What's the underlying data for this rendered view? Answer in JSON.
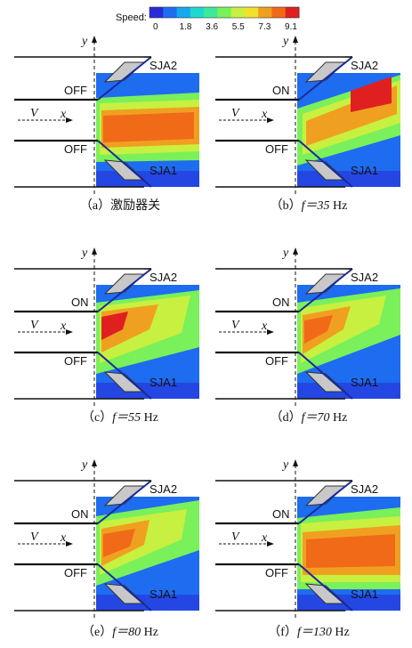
{
  "legend": {
    "title": "Speed:",
    "ticks": [
      "0",
      "1.8",
      "3.6",
      "5.5",
      "7.3",
      "9.1"
    ],
    "colors": [
      "#2a2ad8",
      "#1e6cf0",
      "#14a8f0",
      "#1ed8d0",
      "#3ee89a",
      "#7af05a",
      "#c8f040",
      "#f0e030",
      "#f0a020",
      "#f06a18",
      "#e02020"
    ]
  },
  "labels": {
    "y_axis": "y",
    "x_axis": "x",
    "velocity": "V",
    "sja_top": "SJA2",
    "sja_bottom": "SJA1",
    "on": "ON",
    "off": "OFF"
  },
  "panels": [
    {
      "id": "a",
      "caption_prefix": "（a）",
      "caption_main": "激励器关",
      "caption_unit": "",
      "upper_state": "OFF",
      "lower_state": "OFF"
    },
    {
      "id": "b",
      "caption_prefix": "（b）",
      "caption_main": "f＝35",
      "caption_unit": "Hz",
      "upper_state": "ON",
      "lower_state": "OFF"
    },
    {
      "id": "c",
      "caption_prefix": "（c）",
      "caption_main": "f＝55",
      "caption_unit": "Hz",
      "upper_state": "ON",
      "lower_state": "OFF"
    },
    {
      "id": "d",
      "caption_prefix": "（d）",
      "caption_main": "f＝70",
      "caption_unit": "Hz",
      "upper_state": "ON",
      "lower_state": "OFF"
    },
    {
      "id": "e",
      "caption_prefix": "（e）",
      "caption_main": "f＝80",
      "caption_unit": "Hz",
      "upper_state": "ON",
      "lower_state": "OFF"
    },
    {
      "id": "f",
      "caption_prefix": "（f）",
      "caption_main": "f＝130",
      "caption_unit": "Hz",
      "upper_state": "ON",
      "lower_state": "OFF"
    }
  ]
}
